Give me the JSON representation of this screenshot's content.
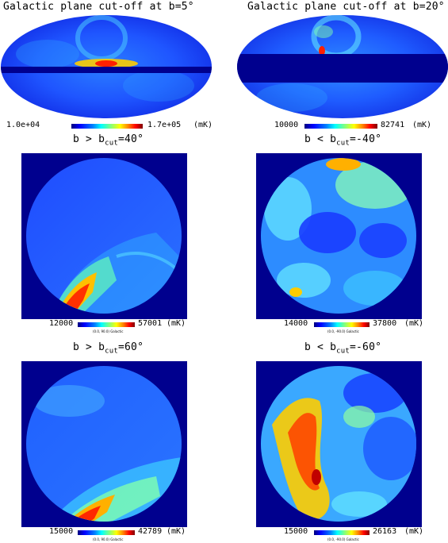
{
  "panels": {
    "moll1": {
      "title": "Galactic plane cut-off at b=5°",
      "min": "1.0e+04",
      "max": "1.7e+05",
      "unit": "(mK)"
    },
    "moll2": {
      "title": "Galactic plane cut-off at b=20°",
      "min": "10000",
      "max": "82741",
      "unit": "(mK)"
    },
    "north40": {
      "title_pre": "b > b",
      "title_sub": "cut",
      "title_post": "=40°",
      "min": "12000",
      "max": "57001",
      "unit": "(mK)",
      "coord": "(0.0, 90.0) Galactic"
    },
    "south40": {
      "title_pre": "b < b",
      "title_sub": "cut",
      "title_post": "=-40°",
      "min": "14000",
      "max": "37800",
      "unit": "(mK)",
      "coord": "(0.0, -90.0) Galactic"
    },
    "north60": {
      "title_pre": "b > b",
      "title_sub": "cut",
      "title_post": "=60°",
      "min": "15000",
      "max": "42789",
      "unit": "(mK)",
      "coord": "(0.0, 90.0) Galactic"
    },
    "south60": {
      "title_pre": "b < b",
      "title_sub": "cut",
      "title_post": "=-60°",
      "min": "15000",
      "max": "26163",
      "unit": "(mK)",
      "coord": "(0.0, -90.0) Galactic"
    }
  },
  "colors": {
    "background_navy": "#00008e",
    "cold": "#1a3cff",
    "mid": "#3ec8ff",
    "warm": "#ffd000",
    "hot": "#ff2000"
  }
}
